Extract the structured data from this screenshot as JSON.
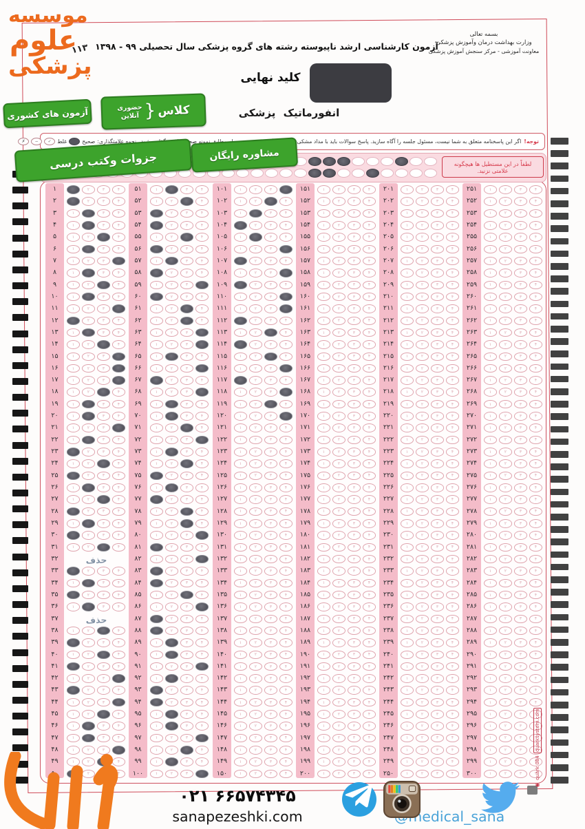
{
  "digits": "۰۱۲۳۴۵۶۷۸۹",
  "logo": {
    "l1": "موسسه",
    "l2": "علوم",
    "l3": "پزشکی"
  },
  "header": {
    "code": "۱۱۳",
    "exam_title": "آزمون کارشناسی ارشد ناپیوسته رشته های گروه پزشکی سال تحصیلی ۹۹ - ۱۳۹۸",
    "bismillah": "بسمه تعالی",
    "ministry": "وزارت بهداشت درمان وآموزش پزشکی",
    "center": "معاونت آموزشی - مرکز سنجش آموزش پزشکی",
    "key_label": "کلید نهایی",
    "subject": "انفورماتیک پزشکی"
  },
  "badges": {
    "national": "آزمون های کشوری",
    "class_main": "کلاس",
    "class_brace": "{",
    "class_sub1": "حضوری",
    "class_sub2": "آنلاین",
    "books": "جزوات وکتب درسی",
    "consult": "مشاوره رایگان"
  },
  "notice": {
    "warn_word": "توجه!",
    "text": "اگر این پاسخنامه متعلق به شما نیست، مسئول جلسه را آگاه سازید. پاسخ سوالات باید با مداد مشکی نرم و پررنگ در بیضی مربوطه مطابق نمونه صحیح علامت گذاری شود.",
    "marking_label": "نحوه علامتگذاری:",
    "correct_label": "صحیح",
    "wrong_label": "غلط",
    "wrong_marks": [
      "✓",
      "−",
      "✗"
    ]
  },
  "no_mark_strip": {
    "text": "لطفاً در این مستطیل ها هیچگونه علامتی نزنید.",
    "rows": [
      {
        "count": 27,
        "filled": [
          18,
          19,
          20,
          24
        ]
      },
      {
        "count": 27,
        "filled": [
          18,
          19,
          22
        ]
      }
    ]
  },
  "grid": {
    "groups": [
      {
        "start": 1
      },
      {
        "start": 51
      },
      {
        "start": 101
      },
      {
        "start": 151
      },
      {
        "start": 201
      },
      {
        "start": 251
      }
    ],
    "rows_per_group": 50,
    "deleted_label": "حذف",
    "answers": [
      1,
      1,
      2,
      2,
      3,
      2,
      4,
      2,
      3,
      2,
      4,
      1,
      2,
      3,
      4,
      4,
      4,
      3,
      2,
      2,
      4,
      2,
      1,
      3,
      1,
      2,
      3,
      1,
      2,
      1,
      3,
      "X",
      1,
      2,
      1,
      2,
      "X",
      3,
      1,
      3,
      1,
      4,
      1,
      4,
      3,
      2,
      2,
      4,
      3,
      1,
      2,
      3,
      1,
      1,
      3,
      1,
      2,
      1,
      4,
      1,
      3,
      3,
      4,
      4,
      2,
      4,
      1,
      4,
      2,
      2,
      3,
      4,
      2,
      3,
      1,
      2,
      1,
      3,
      3,
      4,
      1,
      4,
      1,
      1,
      3,
      4,
      1,
      1,
      2,
      2,
      4,
      2,
      1,
      1,
      2,
      2,
      4,
      3,
      2,
      4,
      4,
      3,
      2,
      1,
      2,
      4,
      1,
      4,
      1,
      4,
      4,
      1,
      3,
      1,
      3,
      4,
      1,
      4,
      3,
      4,
      0,
      0,
      0,
      0,
      0,
      0,
      0,
      0,
      0,
      0,
      0,
      0,
      0,
      0,
      0,
      0,
      0,
      0,
      0,
      0,
      0,
      0,
      0,
      0,
      0,
      0,
      0,
      0,
      0,
      0,
      0,
      0,
      0,
      0,
      0,
      0,
      0,
      0,
      0,
      0,
      0,
      0,
      0,
      0,
      0,
      0,
      0,
      0,
      0,
      0,
      0,
      0,
      0,
      0,
      0,
      0,
      0,
      0,
      0,
      0,
      0,
      0,
      0,
      0,
      0,
      0,
      0,
      0,
      0,
      0,
      0,
      0,
      0,
      0,
      0,
      0,
      0,
      0,
      0,
      0,
      0,
      0,
      0,
      0,
      0,
      0,
      0,
      0,
      0,
      0,
      0,
      0,
      0,
      0,
      0,
      0,
      0,
      0,
      0,
      0,
      0,
      0,
      0,
      0,
      0,
      0,
      0,
      0,
      0,
      0,
      0,
      0,
      0,
      0,
      0,
      0,
      0,
      0,
      0,
      0,
      0,
      0,
      0,
      0,
      0,
      0,
      0,
      0,
      0,
      0,
      0,
      0,
      0,
      0,
      0,
      0,
      0,
      0,
      0,
      0,
      0,
      0,
      0,
      0,
      0,
      0,
      0,
      0,
      0,
      0,
      0,
      0,
      0,
      0,
      0,
      0,
      0,
      0,
      0,
      0,
      0,
      0,
      0,
      0,
      0,
      0,
      0,
      0,
      0,
      0,
      0,
      0,
      0,
      0,
      0,
      0,
      0,
      0,
      0,
      0
    ]
  },
  "timing_marks": {
    "left_count": 39,
    "right_count": 52
  },
  "side_note": {
    "reg": "◉",
    "text": "quark 084",
    "boxed": "quarksystem.com"
  },
  "footer": {
    "phone": "۰۲۱  ۶۶۵۷۴۳۴۵",
    "website": "sanapezeshki.com",
    "handle": "@medical_sana"
  },
  "colors": {
    "accent_red": "#cc4f5e",
    "pink_column": "#f4bcc9",
    "strip_pink": "#fadbe1",
    "filled_bubble": "#55555e",
    "badge_green": "#3da32c",
    "logo_orange": "#ec6a1e",
    "telegram_blue": "#2ba0e0",
    "twitter_blue": "#55acee",
    "handle_blue": "#4aa3d8"
  }
}
